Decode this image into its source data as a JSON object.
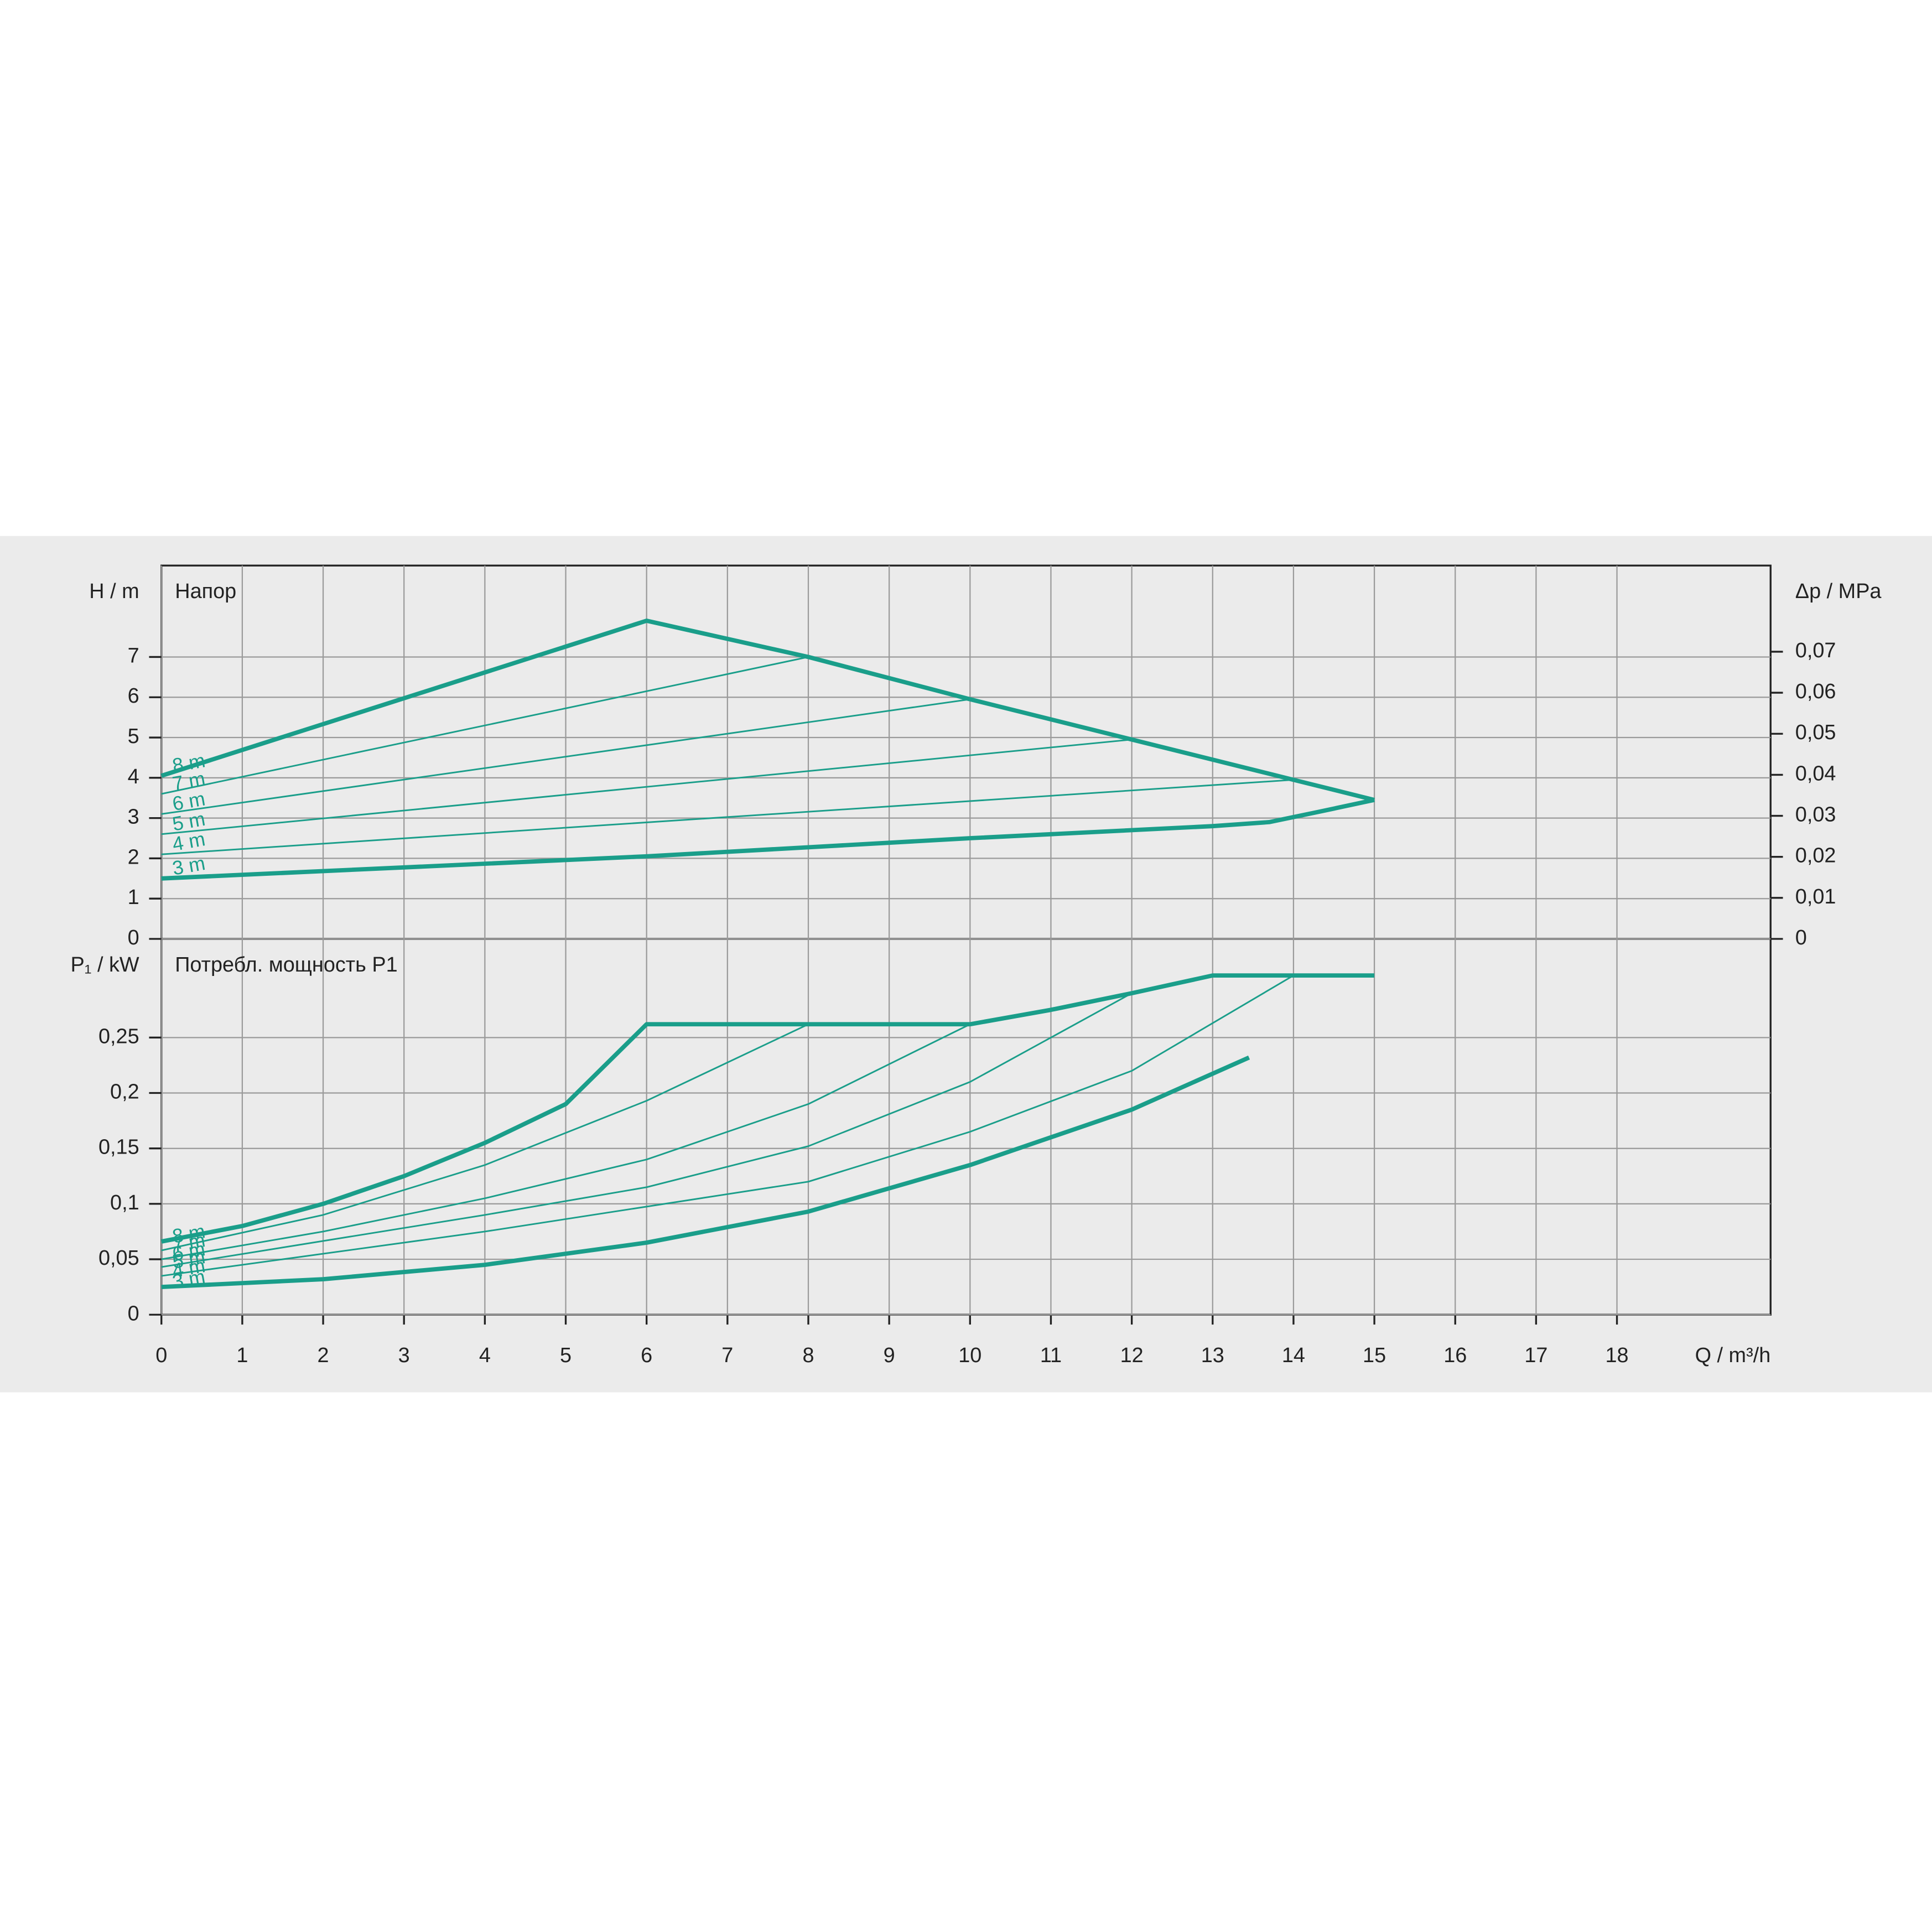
{
  "chart_data": [
    {
      "type": "line",
      "title": "Напор",
      "ylabel": "H / m",
      "y2label": "Δp / MPa",
      "color": "#1a9e8a",
      "grid": true,
      "xlim": [
        0,
        19.9
      ],
      "ylim": [
        0,
        9.27
      ],
      "yticks": [
        0,
        1,
        2,
        3,
        4,
        5,
        6,
        7
      ],
      "y2lim": [
        0,
        0.091
      ],
      "y2ticks": [
        0,
        {
          "value": 0.01,
          "label": "0,01"
        },
        {
          "value": 0.02,
          "label": "0,02"
        },
        {
          "value": 0.03,
          "label": "0,03"
        },
        {
          "value": 0.04,
          "label": "0,04"
        },
        {
          "value": 0.05,
          "label": "0,05"
        },
        {
          "value": 0.06,
          "label": "0,06"
        },
        {
          "value": 0.07,
          "label": "0,07"
        }
      ],
      "series": [
        {
          "name": "8 m",
          "x": [
            0,
            6,
            8,
            10,
            12,
            14,
            15
          ],
          "values": [
            4.05,
            7.9,
            7.0,
            5.95,
            4.95,
            3.95,
            3.45
          ]
        },
        {
          "name": "7 m",
          "x": [
            0,
            8
          ],
          "values": [
            3.6,
            7.0
          ]
        },
        {
          "name": "6 m",
          "x": [
            0,
            10
          ],
          "values": [
            3.1,
            5.95
          ]
        },
        {
          "name": "5 m",
          "x": [
            0,
            12
          ],
          "values": [
            2.6,
            4.95
          ]
        },
        {
          "name": "4 m",
          "x": [
            0,
            14
          ],
          "values": [
            2.1,
            3.95
          ]
        },
        {
          "name": "3 m",
          "x": [
            0,
            6,
            10,
            13,
            13.7,
            14.3,
            15
          ],
          "values": [
            1.5,
            2.05,
            2.5,
            2.8,
            2.9,
            3.15,
            3.45
          ]
        }
      ]
    },
    {
      "type": "line",
      "title": "Потребл. мощность P1",
      "ylabel": "P₁ / kW",
      "xlabel": "Q / m³/h",
      "color": "#1a9e8a",
      "grid": true,
      "xlim": [
        0,
        19.9
      ],
      "xticks": [
        0,
        1,
        2,
        3,
        4,
        5,
        6,
        7,
        8,
        9,
        10,
        11,
        12,
        13,
        14,
        15,
        16,
        17,
        18
      ],
      "ylim": [
        0,
        0.339
      ],
      "yticks": [
        0,
        {
          "value": 0.05,
          "label": "0,05"
        },
        {
          "value": 0.1,
          "label": "0,1"
        },
        {
          "value": 0.15,
          "label": "0,15"
        },
        {
          "value": 0.2,
          "label": "0,2"
        },
        {
          "value": 0.25,
          "label": "0,25"
        }
      ],
      "series": [
        {
          "name": "8 m",
          "x": [
            0,
            1,
            2,
            3,
            4,
            5,
            6,
            8,
            10,
            11,
            12,
            13,
            15
          ],
          "values": [
            0.066,
            0.08,
            0.1,
            0.125,
            0.155,
            0.19,
            0.262,
            0.262,
            0.262,
            0.275,
            0.29,
            0.306,
            0.306
          ]
        },
        {
          "name": "7 m",
          "x": [
            0,
            2,
            4,
            6,
            8
          ],
          "values": [
            0.058,
            0.09,
            0.135,
            0.193,
            0.262
          ]
        },
        {
          "name": "6 m",
          "x": [
            0,
            2,
            4,
            6,
            8,
            10
          ],
          "values": [
            0.05,
            0.075,
            0.105,
            0.14,
            0.19,
            0.262
          ]
        },
        {
          "name": "5 m",
          "x": [
            0,
            4,
            6,
            8,
            10,
            12
          ],
          "values": [
            0.043,
            0.09,
            0.115,
            0.152,
            0.21,
            0.29
          ]
        },
        {
          "name": "4 m",
          "x": [
            0,
            4,
            8,
            10,
            12,
            14
          ],
          "values": [
            0.035,
            0.075,
            0.12,
            0.165,
            0.22,
            0.306
          ]
        },
        {
          "name": "3 m",
          "x": [
            0,
            2,
            4,
            6,
            8,
            10,
            12,
            13.45
          ],
          "values": [
            0.025,
            0.032,
            0.045,
            0.065,
            0.093,
            0.135,
            0.185,
            0.232
          ]
        }
      ]
    }
  ]
}
